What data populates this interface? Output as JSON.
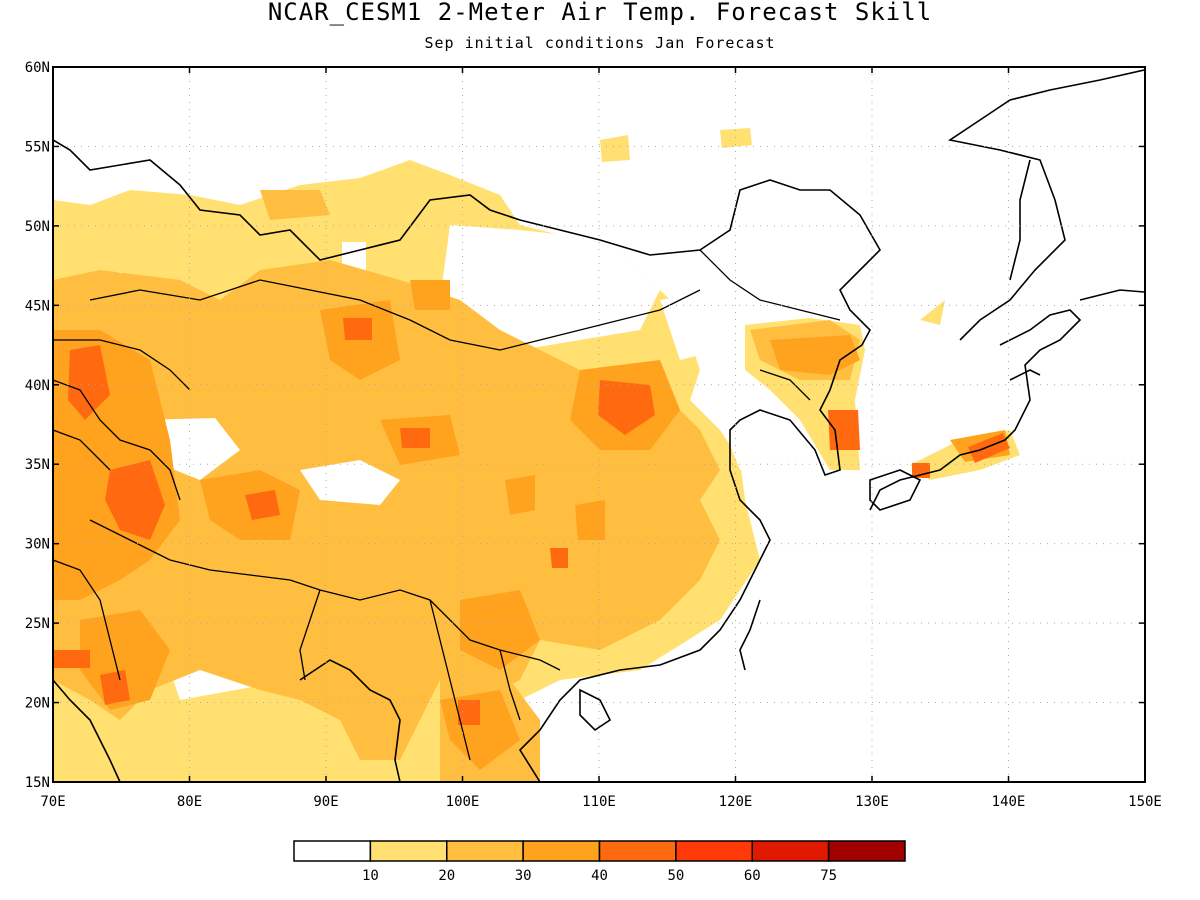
{
  "title": "NCAR_CESM1 2-Meter Air Temp. Forecast Skill",
  "subtitle": "Sep initial conditions  Jan Forecast",
  "map": {
    "lon_range": [
      70,
      150
    ],
    "lat_range": [
      15,
      60
    ],
    "lon_ticks": [
      {
        "value": 70,
        "label": "70E"
      },
      {
        "value": 80,
        "label": "80E"
      },
      {
        "value": 90,
        "label": "90E"
      },
      {
        "value": 100,
        "label": "100E"
      },
      {
        "value": 110,
        "label": "110E"
      },
      {
        "value": 120,
        "label": "120E"
      },
      {
        "value": 130,
        "label": "130E"
      },
      {
        "value": 140,
        "label": "140E"
      },
      {
        "value": 150,
        "label": "150E"
      }
    ],
    "lat_ticks": [
      {
        "value": 15,
        "label": "15N"
      },
      {
        "value": 20,
        "label": "20N"
      },
      {
        "value": 25,
        "label": "25N"
      },
      {
        "value": 30,
        "label": "30N"
      },
      {
        "value": 35,
        "label": "35N"
      },
      {
        "value": 40,
        "label": "40N"
      },
      {
        "value": 45,
        "label": "45N"
      },
      {
        "value": 50,
        "label": "50N"
      },
      {
        "value": 55,
        "label": "55N"
      },
      {
        "value": 60,
        "label": "60N"
      }
    ],
    "grid_lines": "dotted"
  },
  "colorbar": {
    "colors": [
      "#ffffff",
      "#ffe070",
      "#ffbe40",
      "#ffa21e",
      "#ff6a10",
      "#ff3a08",
      "#e01a00",
      "#a00000"
    ],
    "labels": [
      "10",
      "20",
      "30",
      "40",
      "50",
      "60",
      "75"
    ]
  }
}
